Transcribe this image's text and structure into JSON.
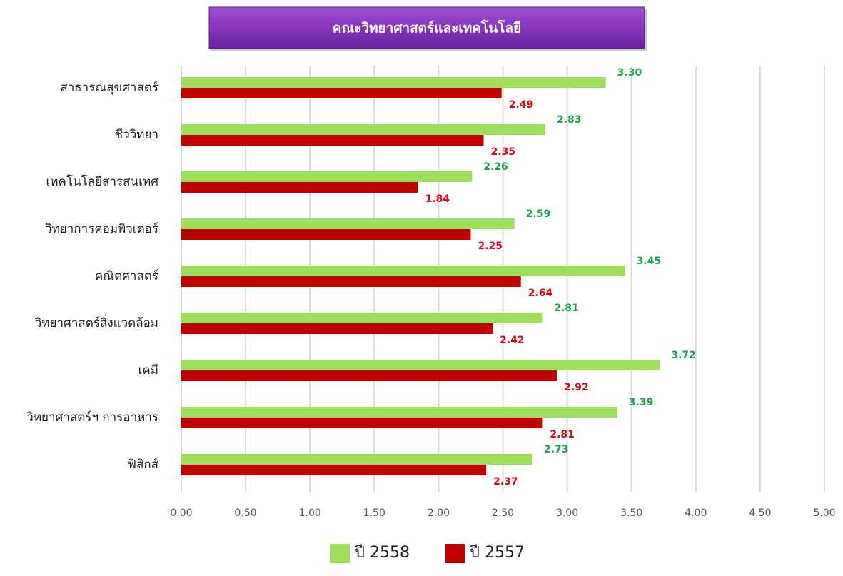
{
  "chart_data": {
    "type": "hbar",
    "title": "คณะวิทยาศาสตร์และเทคโนโลยี",
    "categories": [
      "สาธารณสุขศาสตร์",
      "ชีววิทยา",
      "เทคโนโลยีสารสนเทศ",
      "วิทยาการคอมพิวเตอร์",
      "คณิตศาสตร์",
      "วิทยาศาสตร์สิ่งแวดล้อม",
      "เคมี",
      "วิทยาศาสตร์ฯ การอาหาร",
      "ฟิสิกส์"
    ],
    "series": [
      {
        "name": "ปี 2558",
        "color": "#9ddf5a",
        "label_color": "#1aa34a",
        "values": [
          3.3,
          2.83,
          2.26,
          2.59,
          3.45,
          2.81,
          3.72,
          3.39,
          2.73
        ],
        "value_labels": [
          "3.30",
          "2.83",
          "2.26",
          "2.59",
          "3.45",
          "2.81",
          "3.72",
          "3.39",
          "2.73"
        ]
      },
      {
        "name": "ปี 2557",
        "color": "#c00000",
        "label_color": "#e0001a",
        "values": [
          2.49,
          2.35,
          1.84,
          2.25,
          2.64,
          2.42,
          2.92,
          2.81,
          2.37
        ],
        "value_labels": [
          "2.49",
          "2.35",
          "1.84",
          "2.25",
          "2.64",
          "2.42",
          "2.92",
          "2.81",
          "2.37"
        ]
      }
    ],
    "xlim": [
      0,
      5
    ],
    "xticks": [
      {
        "value": 0,
        "label": "0.00"
      },
      {
        "value": 0.5,
        "label": "0.50"
      },
      {
        "value": 1,
        "label": "1.00"
      },
      {
        "value": 1.5,
        "label": "1.50"
      },
      {
        "value": 2,
        "label": "2.00"
      },
      {
        "value": 2.5,
        "label": "2.50"
      },
      {
        "value": 3,
        "label": "3.00"
      },
      {
        "value": 3.5,
        "label": "3.50"
      },
      {
        "value": 4,
        "label": "4.00"
      },
      {
        "value": 4.5,
        "label": "4.50"
      },
      {
        "value": 5,
        "label": "5.00"
      }
    ],
    "grid": true,
    "legend": "bottom"
  }
}
